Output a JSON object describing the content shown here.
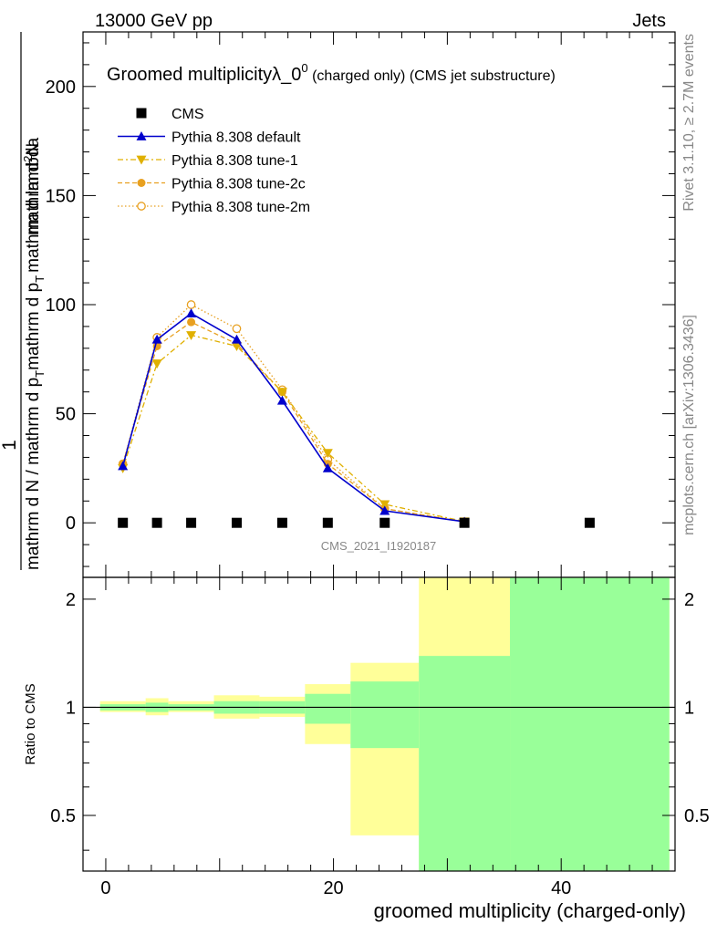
{
  "header": {
    "energy_label": "13000 GeV pp",
    "category_label": "Jets"
  },
  "side_labels": {
    "rivet": "Rivet 3.1.10, ≥ 2.7M events",
    "mcplots": "mcplots.cern.ch [arXiv:1306.3436]"
  },
  "chart_data": [
    {
      "type": "line",
      "title": {
        "main": "Groomed multiplicityλ_0",
        "superscript": "0",
        "suffix": " (charged only) (CMS jet substructure)"
      },
      "watermark": "CMS_2021_I1920187",
      "xlim": [
        -2,
        50
      ],
      "ylim": [
        -25,
        225
      ],
      "yticks": [
        0,
        50,
        100,
        150,
        200
      ],
      "ylabel": {
        "numerator": "1",
        "denominator": "mathrm d N / mathrm d p_T",
        "rhs_numerator": "mathrm d²N",
        "rhs_denominator": "mathrm d p_T mathrm d lambda",
        "denominator_parts": [
          "mathrm d N / mathrm d p",
          "T",
          "mathrm d p",
          "T",
          "mathrm d lambda"
        ],
        "numerator_parts": [
          "mathrm d",
          "2",
          "N"
        ]
      },
      "legend_placement": "top-left",
      "series": [
        {
          "name": "CMS",
          "marker": "square-filled",
          "color": "#000000",
          "x": [
            1.5,
            4.5,
            7.5,
            11.5,
            15.5,
            19.5,
            24.5,
            31.5,
            42.5
          ],
          "y": [
            0,
            0,
            0,
            0,
            0,
            0,
            0,
            0,
            0
          ]
        },
        {
          "name": "Pythia 8.308 default",
          "marker": "triangle-up-filled",
          "line": "solid",
          "color": "#0000cc",
          "x": [
            1.5,
            4.5,
            7.5,
            11.5,
            15.5,
            19.5,
            24.5,
            31.5
          ],
          "y": [
            26,
            84,
            96,
            84,
            56,
            25,
            5.5,
            0.5
          ]
        },
        {
          "name": "Pythia 8.308 tune-1",
          "marker": "triangle-down-filled",
          "line": "dashdot",
          "color": "#e0b000",
          "x": [
            1.5,
            4.5,
            7.5,
            11.5,
            15.5,
            19.5,
            24.5,
            31.5
          ],
          "y": [
            25,
            73,
            86,
            81,
            60,
            32,
            8.5,
            0.6
          ]
        },
        {
          "name": "Pythia 8.308 tune-2c",
          "marker": "circle-filled",
          "line": "dashed",
          "color": "#e8a020",
          "x": [
            1.5,
            4.5,
            7.5,
            11.5,
            15.5,
            19.5,
            24.5,
            31.5
          ],
          "y": [
            27,
            81,
            92,
            82,
            60,
            27,
            6.5,
            0.5
          ]
        },
        {
          "name": "Pythia 8.308 tune-2m",
          "marker": "circle-open",
          "line": "dotted",
          "color": "#e8a020",
          "x": [
            1.5,
            4.5,
            7.5,
            11.5,
            15.5,
            19.5,
            24.5,
            31.5
          ],
          "y": [
            27,
            85,
            100,
            89,
            61,
            29,
            6.5,
            0.5
          ]
        }
      ]
    },
    {
      "type": "area",
      "ylabel": "Ratio to CMS",
      "xlabel": "groomed multiplicity (charged-only)",
      "xlim": [
        -2,
        50
      ],
      "ylim": [
        0.35,
        2.3
      ],
      "xticks": [
        0,
        20,
        40
      ],
      "yticks": [
        0.5,
        1,
        2
      ],
      "reference_line": 1,
      "bands": {
        "bin_edges": [
          -0.5,
          3.5,
          5.5,
          9.5,
          13.5,
          17.5,
          21.5,
          27.5,
          35.5,
          49.5
        ],
        "stat_low": [
          0.98,
          0.97,
          0.98,
          0.96,
          0.96,
          0.9,
          0.77,
          0.35,
          0.35
        ],
        "stat_high": [
          1.02,
          1.03,
          1.02,
          1.04,
          1.04,
          1.09,
          1.18,
          1.39,
          2.3
        ],
        "total_low": [
          0.97,
          0.95,
          0.97,
          0.93,
          0.94,
          0.79,
          0.44,
          0.35,
          0.35
        ],
        "total_high": [
          1.04,
          1.06,
          1.04,
          1.08,
          1.07,
          1.16,
          1.33,
          2.3,
          2.3
        ],
        "stat_color": "#99ff99",
        "total_color": "#ffff99"
      }
    }
  ]
}
